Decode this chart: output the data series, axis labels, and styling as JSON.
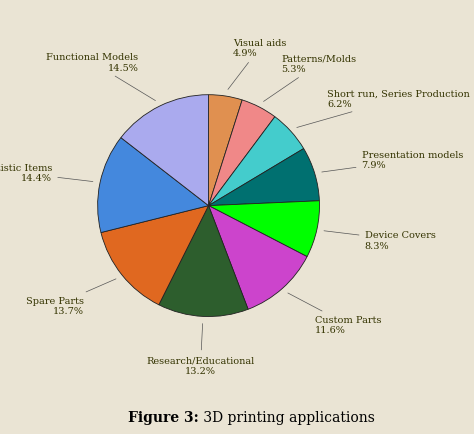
{
  "title": "3D Printing Applications",
  "caption_bold": "Figure 3:",
  "caption_normal": " 3D printing applications",
  "slices": [
    {
      "label": "Visual aids",
      "pct": "4.9%",
      "value": 4.9,
      "color": "#E09050"
    },
    {
      "label": "Patterns/Molds",
      "pct": "5.3%",
      "value": 5.3,
      "color": "#F08888"
    },
    {
      "label": "Short run, Series Production",
      "pct": "6.2%",
      "value": 6.2,
      "color": "#44CCCC"
    },
    {
      "label": "Presentation models",
      "pct": "7.9%",
      "value": 7.9,
      "color": "#007070"
    },
    {
      "label": "Device Covers",
      "pct": "8.3%",
      "value": 8.3,
      "color": "#00FF00"
    },
    {
      "label": "Custom Parts",
      "pct": "11.6%",
      "value": 11.6,
      "color": "#CC44CC"
    },
    {
      "label": "Research/Educational",
      "pct": "13.2%",
      "value": 13.2,
      "color": "#2D5E2D"
    },
    {
      "label": "Spare Parts",
      "pct": "13.7%",
      "value": 13.7,
      "color": "#E06820"
    },
    {
      "label": "Artistic Items",
      "pct": "14.4%",
      "value": 14.4,
      "color": "#4488DD"
    },
    {
      "label": "Functional Models",
      "pct": "14.5%",
      "value": 14.5,
      "color": "#AAAAEE"
    }
  ],
  "bg_color": "#EAE4D4",
  "title_fontsize": 11,
  "label_fontsize": 7,
  "caption_fontsize": 10,
  "startangle": 90
}
